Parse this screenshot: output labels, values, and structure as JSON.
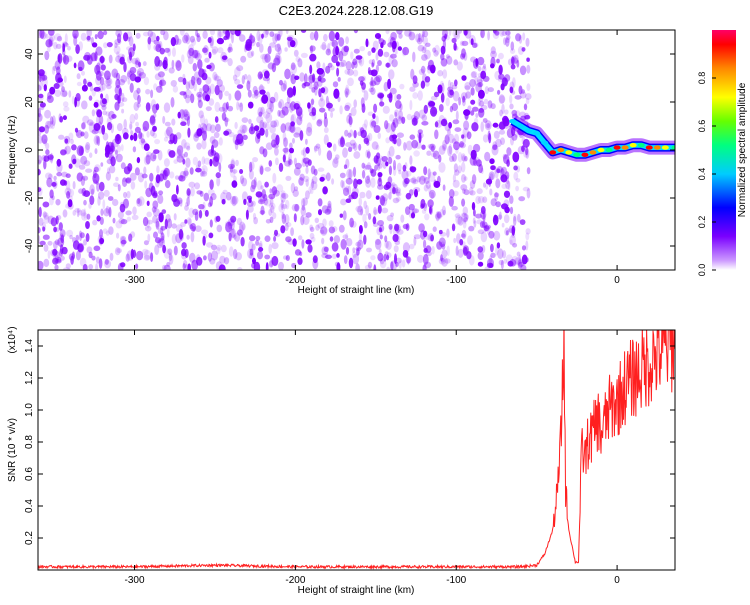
{
  "title": "C2E3.2024.228.12.08.G19",
  "colors": {
    "snr_line": "#ff2020",
    "scatter_base": "#7f00ff",
    "frame": "#000000"
  },
  "chart_data": [
    {
      "type": "heatmap",
      "title": "C2E3.2024.228.12.08.G19",
      "xlabel": "Height of straight line (km)",
      "ylabel": "Frequency (Hz)",
      "xlim": [
        -360,
        36
      ],
      "ylim": [
        -50,
        50
      ],
      "x_ticks": [
        -300,
        -200,
        -100,
        0
      ],
      "x_tick_labels": [
        "-300",
        "-200",
        "-100",
        "0"
      ],
      "y_ticks": [
        -40,
        -20,
        0,
        20,
        40
      ],
      "y_tick_labels": [
        "-40",
        "-20",
        "0",
        "20",
        "40"
      ],
      "noise_region_x": [
        -360,
        -55
      ],
      "signal_trace": {
        "x": [
          -65,
          -60,
          -55,
          -50,
          -45,
          -40,
          -35,
          -30,
          -25,
          -20,
          -15,
          -10,
          -5,
          0,
          5,
          10,
          15,
          20,
          25,
          30,
          36
        ],
        "y": [
          12,
          10,
          8,
          7,
          3,
          -1,
          0,
          -1,
          -2,
          -2,
          -1,
          0,
          0,
          1,
          1,
          2,
          2,
          1,
          1,
          1,
          1
        ]
      },
      "colorbar": {
        "label": "Normalized spectral amplitude",
        "range": [
          0,
          1
        ],
        "ticks": [
          0.0,
          0.2,
          0.4,
          0.6,
          0.8
        ],
        "tick_labels": [
          "0.0",
          "0.2",
          "0.4",
          "0.6",
          "0.8"
        ],
        "colormap": "rainbow-white"
      }
    },
    {
      "type": "line",
      "xlabel": "Height of straight line (km)",
      "ylabel": "SNR (10 * v/v)",
      "y_multiplier": "(x10⁴)",
      "xlim": [
        -360,
        36
      ],
      "ylim": [
        0,
        1.5
      ],
      "x_ticks": [
        -300,
        -200,
        -100,
        0
      ],
      "x_tick_labels": [
        "-300",
        "-200",
        "-100",
        "0"
      ],
      "y_ticks": [
        0.2,
        0.4,
        0.6,
        0.8,
        1.0,
        1.2,
        1.4
      ],
      "y_tick_labels": [
        "0.2",
        "0.4",
        "0.6",
        "0.8",
        "1.0",
        "1.2",
        "1.4"
      ],
      "series": [
        {
          "x": [
            -360,
            -300,
            -250,
            -200,
            -150,
            -100,
            -60,
            -50,
            -45,
            -40,
            -37,
            -35,
            -33,
            -32,
            -30,
            -28,
            -26,
            -24,
            -22,
            -20,
            -18,
            -15,
            -12,
            -10,
            -5,
            0,
            5,
            10,
            15,
            20,
            25,
            30,
            36
          ],
          "y": [
            0.02,
            0.02,
            0.03,
            0.02,
            0.02,
            0.02,
            0.02,
            0.03,
            0.1,
            0.25,
            0.5,
            0.8,
            1.45,
            0.5,
            0.25,
            0.15,
            0.05,
            0.05,
            0.75,
            0.7,
            0.8,
            0.85,
            0.95,
            0.85,
            1.0,
            1.05,
            1.15,
            1.2,
            1.25,
            1.3,
            1.35,
            1.38,
            1.42
          ]
        }
      ]
    }
  ]
}
